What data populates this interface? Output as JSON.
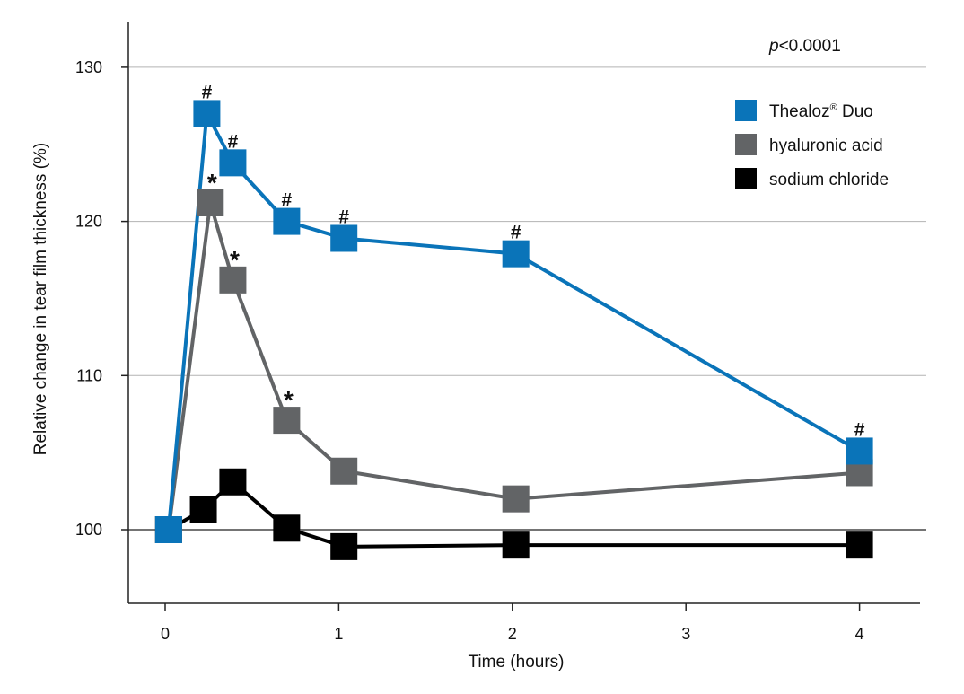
{
  "chart_data": {
    "type": "line",
    "xlabel": "Time (hours)",
    "ylabel": "Relative change in tear film thickness (%)",
    "annotation": "p<0.0001",
    "xlim": [
      -0.2,
      4.35
    ],
    "ylim": [
      95,
      133
    ],
    "x_ticks": [
      0,
      1,
      2,
      3,
      4
    ],
    "x_tick_labels": [
      "0",
      "1",
      "2",
      "3",
      "4"
    ],
    "y_ticks": [
      100,
      110,
      120,
      130
    ],
    "y_tick_labels": [
      "100",
      "110",
      "120",
      "130"
    ],
    "grid": "horizontal",
    "legend_position": "top-right",
    "series": [
      {
        "name": "Thealoz® Duo",
        "color": "#0a74b9",
        "marker": "square",
        "x": [
          0.02,
          0.24,
          0.39,
          0.7,
          1.03,
          2.02,
          4.0
        ],
        "y": [
          100.0,
          127.0,
          123.8,
          120.0,
          118.9,
          117.9,
          105.1
        ],
        "point_labels": [
          "",
          "#",
          "#",
          "#",
          "#",
          "#",
          "#"
        ]
      },
      {
        "name": "hyaluronic acid",
        "color": "#626466",
        "marker": "square",
        "x": [
          0.02,
          0.26,
          0.39,
          0.7,
          1.03,
          2.02,
          4.0
        ],
        "y": [
          100.0,
          121.2,
          116.2,
          107.1,
          103.8,
          102.0,
          103.7
        ],
        "point_labels": [
          "",
          "*",
          "*",
          "*",
          "",
          "",
          ""
        ]
      },
      {
        "name": "sodium chloride",
        "color": "#000000",
        "marker": "square",
        "x": [
          0.02,
          0.22,
          0.39,
          0.7,
          1.03,
          2.02,
          4.0
        ],
        "y": [
          100.0,
          101.3,
          103.1,
          100.1,
          98.9,
          99.0,
          99.0
        ],
        "point_labels": [
          "",
          "",
          "",
          "",
          "",
          "",
          ""
        ]
      }
    ]
  }
}
